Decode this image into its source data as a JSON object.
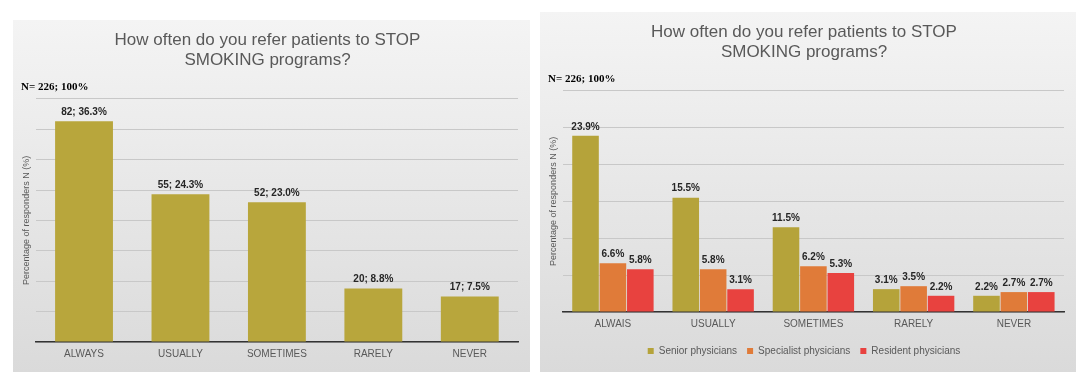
{
  "chart_data": [
    {
      "type": "bar",
      "title": "How often do you refer patients to STOP SMOKING programs?",
      "ylabel": "Percentage of responders N (%)",
      "annotations": [
        "N= 226; 100%"
      ],
      "categories": [
        "ALWAYS",
        "USUALLY",
        "SOMETIMES",
        "RARELY",
        "NEVER"
      ],
      "values": [
        36.3,
        24.3,
        23.0,
        8.8,
        7.5
      ],
      "color": "#b8a63c",
      "value_labels": [
        "82; 36.3%",
        "55; 24.3%",
        "52; 23.0%",
        "20; 8.8%",
        "17; 7.5%"
      ],
      "ylim": [
        0,
        40
      ],
      "yticks": [
        {
          "value": 0,
          "label": null
        },
        {
          "value": 5,
          "label": null
        },
        {
          "value": 10,
          "label": null
        },
        {
          "value": 15,
          "label": null
        },
        {
          "value": 20,
          "label": null
        },
        {
          "value": 25,
          "label": null
        },
        {
          "value": 30,
          "label": null
        },
        {
          "value": 35,
          "label": null
        },
        {
          "value": 40,
          "label": null
        }
      ],
      "grid": "y",
      "tick_labels": "x",
      "legend": false
    },
    {
      "type": "bar",
      "title": "How often do you refer patients to STOP SMOKING programs?",
      "ylabel": "Percentage of responders N (%)",
      "annotations": [
        "N= 226; 100%"
      ],
      "categories": [
        "ALWAIS",
        "USUALLY",
        "SOMETIMES",
        "RARELY",
        "NEVER"
      ],
      "series": [
        {
          "name": "Senior physicians",
          "color": "#b5a33a",
          "values": [
            23.9,
            15.5,
            11.5,
            3.1,
            2.2
          ],
          "value_labels": [
            "23.9%",
            "15.5%",
            "11.5%",
            "3.1%",
            "2.2%"
          ]
        },
        {
          "name": "Specialist physicians",
          "color": "#e07b39",
          "values": [
            6.6,
            5.8,
            6.2,
            3.5,
            2.7
          ],
          "value_labels": [
            "6.6%",
            "5.8%",
            "6.2%",
            "3.5%",
            "2.7%"
          ]
        },
        {
          "name": "Resident physicians",
          "color": "#e8423f",
          "values": [
            5.8,
            3.1,
            5.3,
            2.2,
            2.7
          ],
          "value_labels": [
            "5.8%",
            "3.1%",
            "5.3%",
            "2.2%",
            "2.7%"
          ]
        }
      ],
      "ylim": [
        0,
        30
      ],
      "yticks": [
        {
          "value": 0,
          "label": null
        },
        {
          "value": 5,
          "label": null
        },
        {
          "value": 10,
          "label": null
        },
        {
          "value": 15,
          "label": null
        },
        {
          "value": 20,
          "label": null
        },
        {
          "value": 25,
          "label": null
        },
        {
          "value": 30,
          "label": null
        }
      ],
      "grid": "y",
      "tick_labels": "x",
      "legend": "bottom"
    }
  ]
}
